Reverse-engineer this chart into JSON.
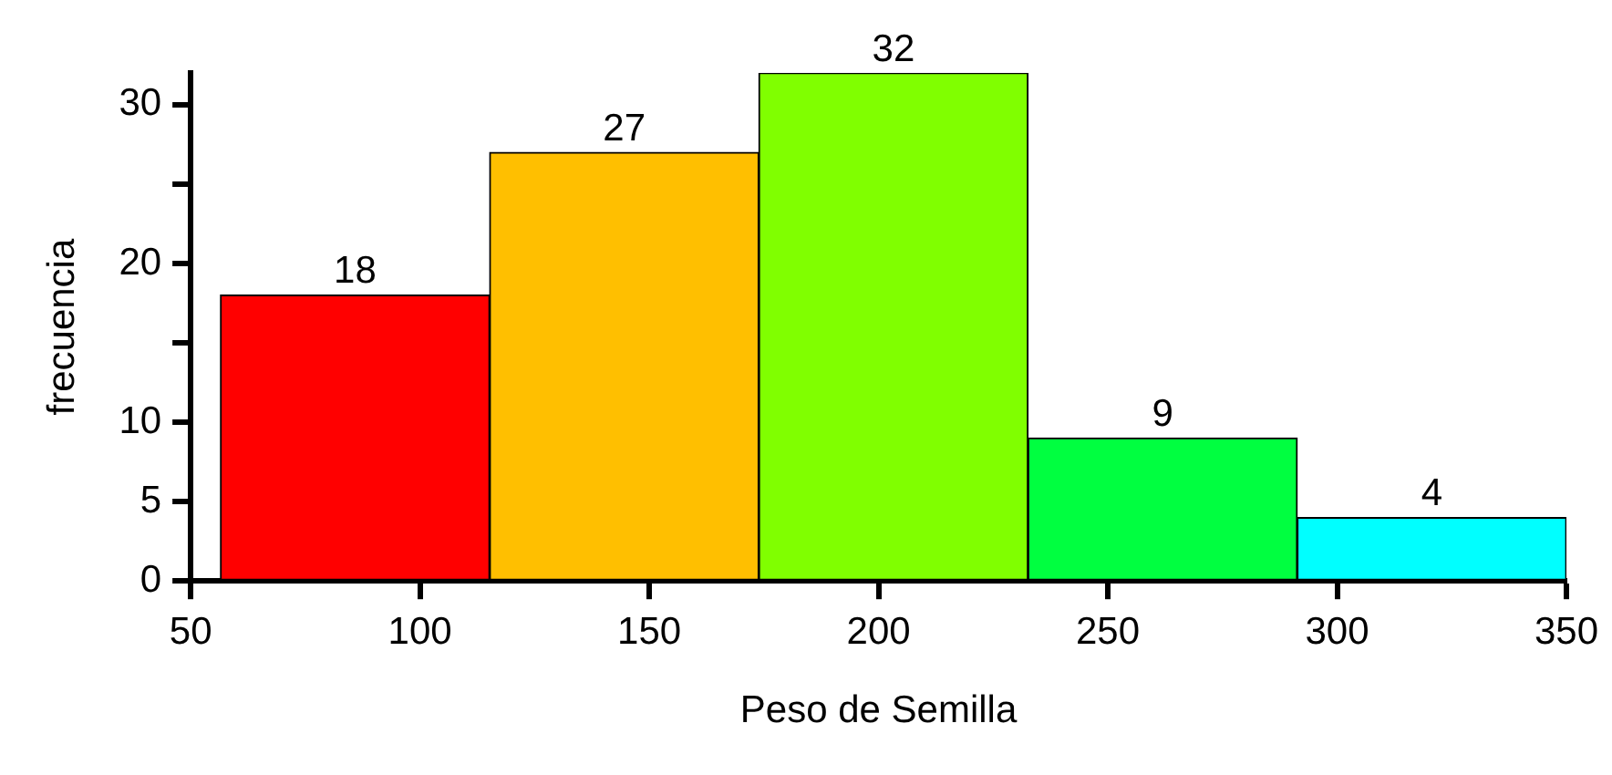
{
  "chart_data": {
    "type": "histogram",
    "xlabel": "Peso de Semilla",
    "ylabel": "frecuencia",
    "bins": [
      56.5,
      115.2,
      173.9,
      232.6,
      291.3,
      350
    ],
    "values": [
      18,
      27,
      32,
      9,
      4
    ],
    "colors": [
      "#ff0000",
      "#ffbf00",
      "#80ff00",
      "#00ff40",
      "#00ffff"
    ],
    "xlim": [
      50,
      350
    ],
    "xticks": [
      50,
      100,
      150,
      200,
      250,
      300,
      350
    ],
    "ylim": [
      0,
      32
    ],
    "yticks": [
      0,
      5,
      10,
      {
        "value": 15,
        "label": null
      },
      20,
      {
        "value": 25,
        "label": null
      },
      30
    ],
    "data_labels": true,
    "grid": false,
    "legend": false
  }
}
